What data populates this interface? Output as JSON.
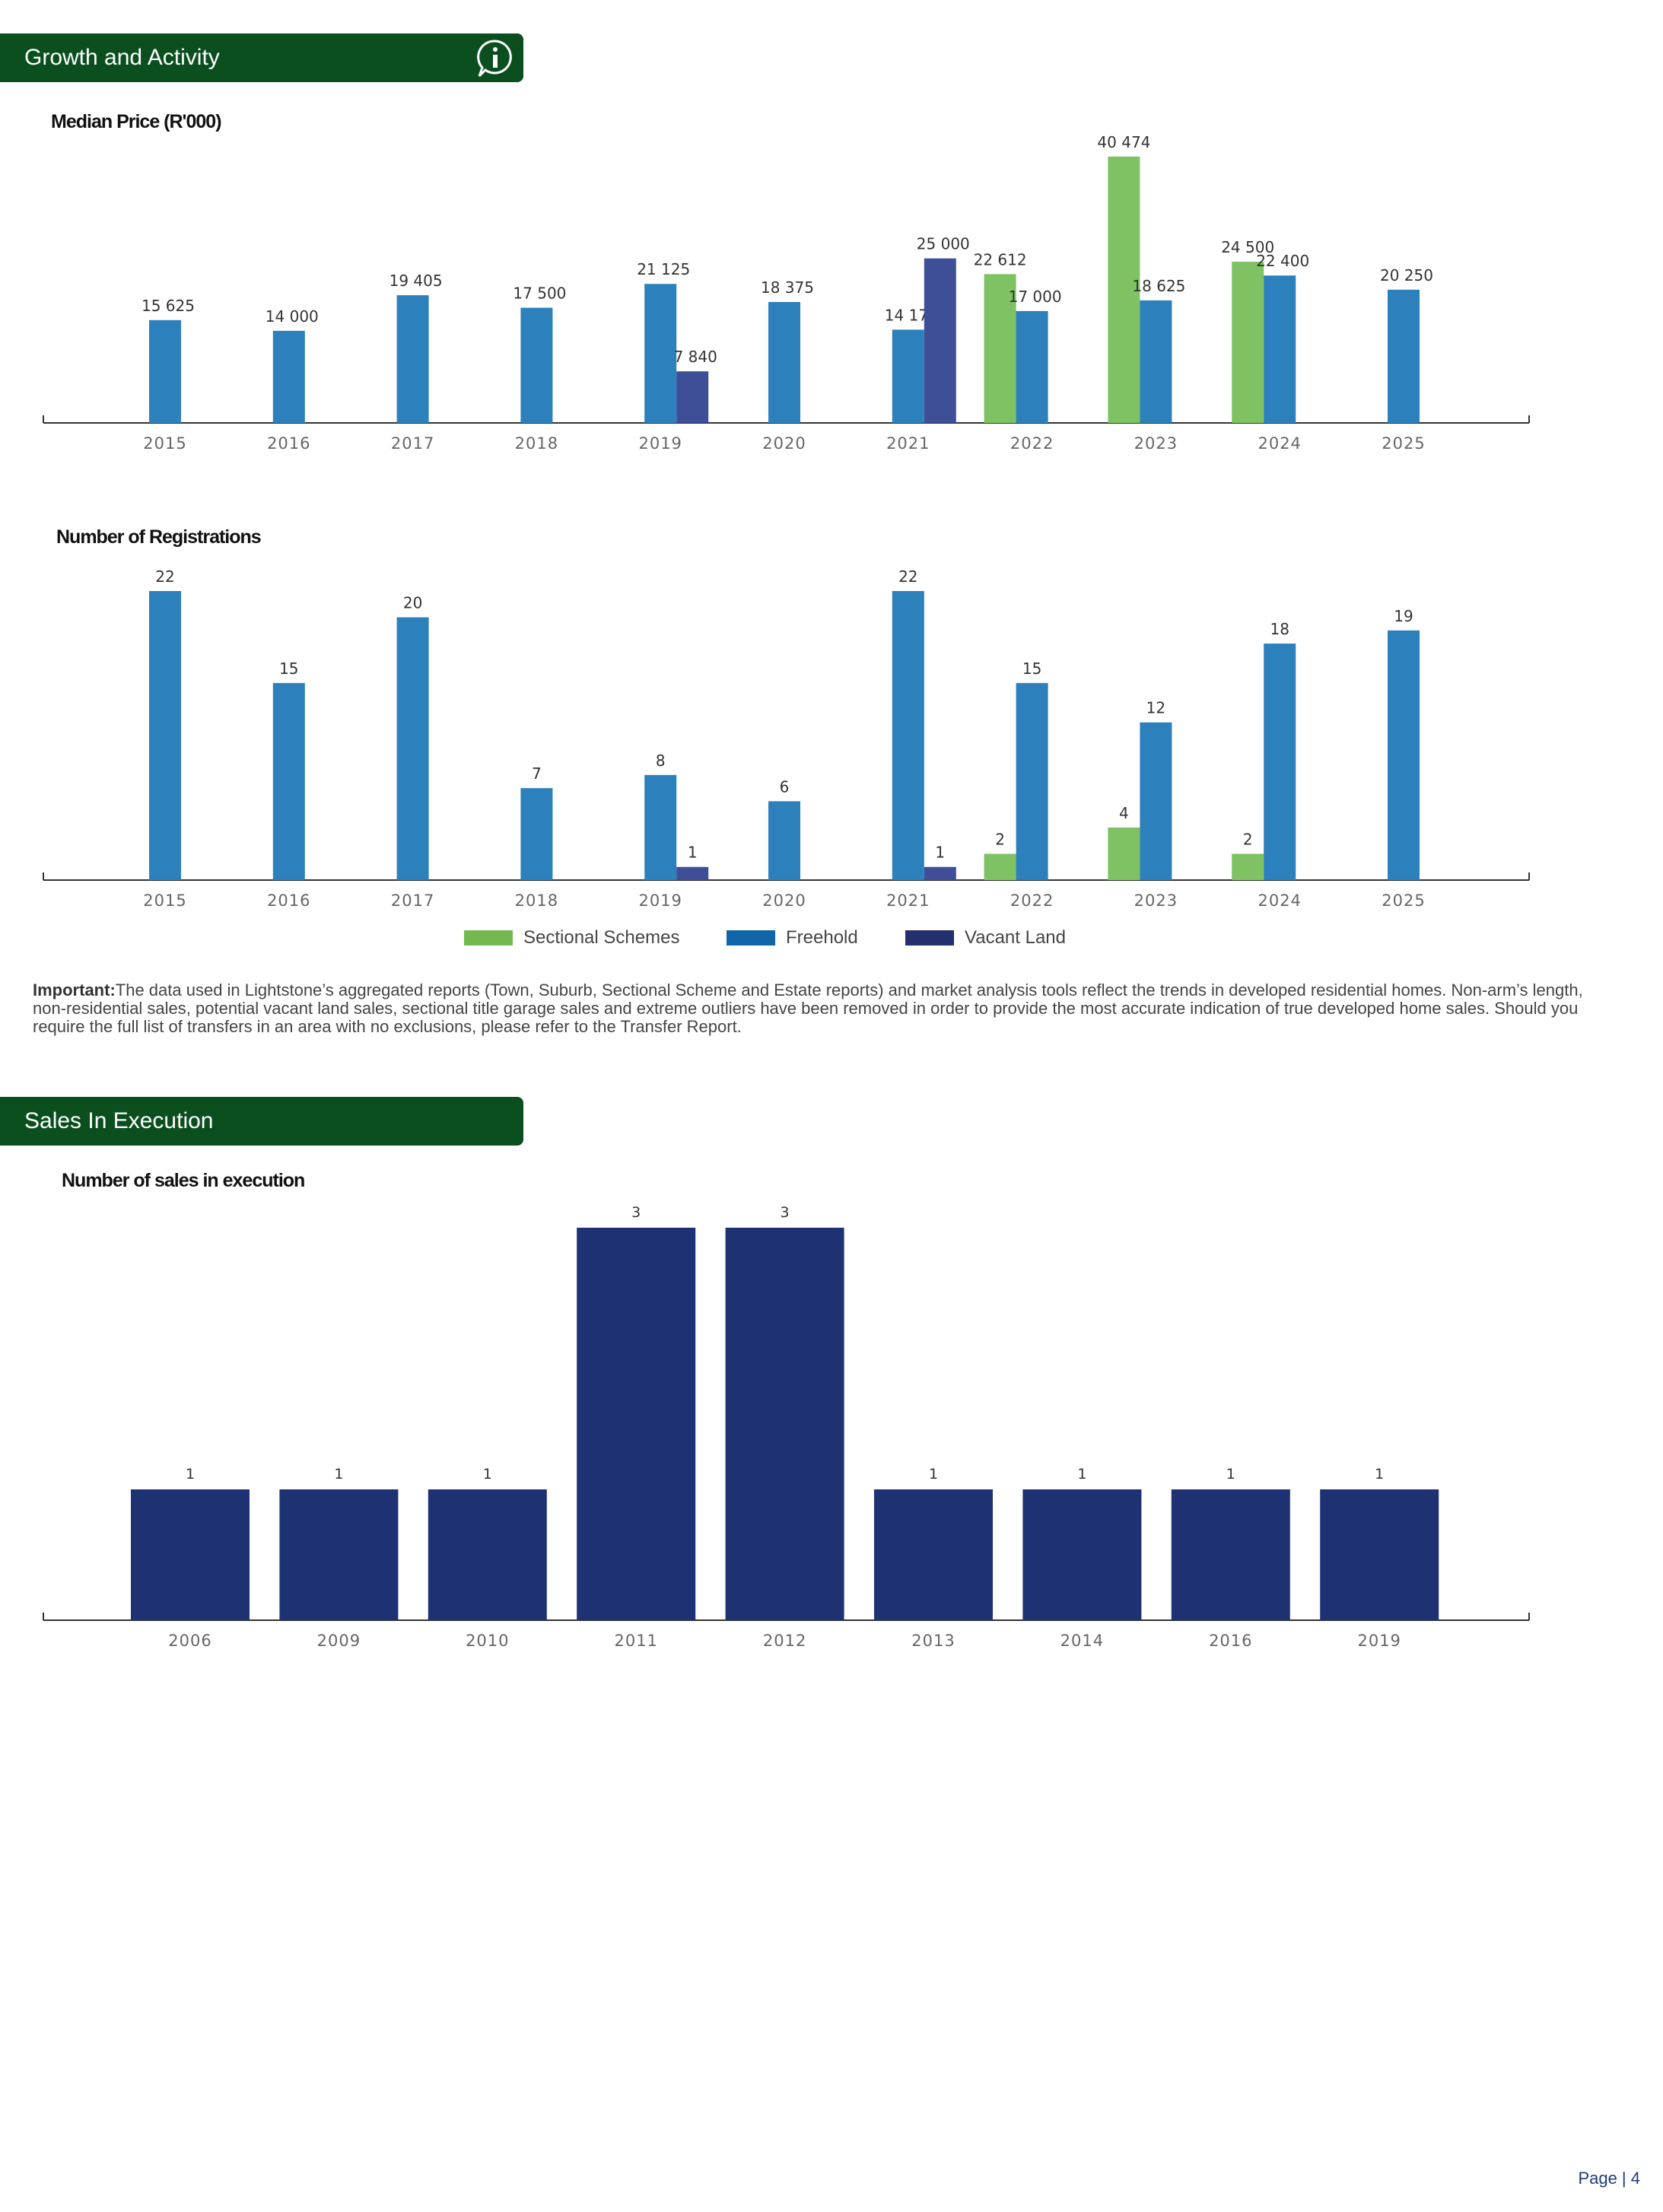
{
  "sections": {
    "growth_title": "Growth and Activity",
    "sales_title": "Sales In Execution"
  },
  "icons": {
    "info": "info-chat-icon"
  },
  "colors": {
    "header_green": "#0b4f1f",
    "sectional_schemes": "#7ec263",
    "freehold": "#2c80bc",
    "vacant_land": "#3e4f97",
    "execution_bar": "#1e3273"
  },
  "legend": {
    "items": [
      {
        "label": "Sectional Schemes",
        "color": "#74b94f"
      },
      {
        "label": "Freehold",
        "color": "#1066a9"
      },
      {
        "label": "Vacant Land",
        "color": "#22306e"
      }
    ]
  },
  "important_note": {
    "lead": "Important:",
    "text": "The data used in Lightstone’s aggregated reports (Town, Suburb, Sectional Scheme and Estate reports) and market analysis tools reflect the trends in developed residential homes. Non-arm’s length, non-residential sales, potential vacant land sales, sectional title garage sales and extreme outliers have been removed in order to provide the most accurate indication of true developed home sales. Should you require the full list of transfers in an area with no exclusions, please refer to the Transfer Report."
  },
  "page": {
    "label": "Page | 4"
  },
  "chart_data": [
    {
      "type": "bar",
      "title": "Median Price (R'000)",
      "categories": [
        "2015",
        "2016",
        "2017",
        "2018",
        "2019",
        "2020",
        "2021",
        "2022",
        "2023",
        "2024",
        "2025"
      ],
      "series": [
        {
          "name": "Sectional Schemes",
          "values": [
            null,
            null,
            null,
            null,
            null,
            null,
            null,
            22612,
            40474,
            24500,
            null
          ],
          "labels": [
            "",
            "",
            "",
            "",
            "",
            "",
            "",
            "22 612",
            "40 474",
            "24 500",
            ""
          ]
        },
        {
          "name": "Freehold",
          "values": [
            15625,
            14000,
            19405,
            17500,
            21125,
            18375,
            14175,
            17000,
            18625,
            22400,
            20250
          ],
          "labels": [
            "15 625",
            "14 000",
            "19 405",
            "17 500",
            "21 125",
            "18 375",
            "14 175",
            "17 000",
            "18 625",
            "22 400",
            "20 250"
          ]
        },
        {
          "name": "Vacant Land",
          "values": [
            null,
            null,
            null,
            null,
            7840,
            null,
            25000,
            null,
            null,
            null,
            null
          ],
          "labels": [
            "",
            "",
            "",
            "",
            "7 840",
            "",
            "25 000",
            "",
            "",
            "",
            ""
          ]
        }
      ],
      "ylim": [
        0,
        43000
      ]
    },
    {
      "type": "bar",
      "title": "Number of Registrations",
      "categories": [
        "2015",
        "2016",
        "2017",
        "2018",
        "2019",
        "2020",
        "2021",
        "2022",
        "2023",
        "2024",
        "2025"
      ],
      "series": [
        {
          "name": "Sectional Schemes",
          "values": [
            null,
            null,
            null,
            null,
            null,
            null,
            null,
            2,
            4,
            2,
            null
          ],
          "labels": [
            "",
            "",
            "",
            "",
            "",
            "",
            "",
            "2",
            "4",
            "2",
            ""
          ]
        },
        {
          "name": "Freehold",
          "values": [
            22,
            15,
            20,
            7,
            8,
            6,
            22,
            15,
            12,
            18,
            19
          ],
          "labels": [
            "22",
            "15",
            "20",
            "7",
            "8",
            "6",
            "22",
            "15",
            "12",
            "18",
            "19"
          ]
        },
        {
          "name": "Vacant Land",
          "values": [
            null,
            null,
            null,
            null,
            1,
            null,
            1,
            null,
            null,
            null,
            null
          ],
          "labels": [
            "",
            "",
            "",
            "",
            "1",
            "",
            "1",
            "",
            "",
            "",
            ""
          ]
        }
      ],
      "ylim": [
        0,
        22
      ]
    },
    {
      "type": "bar",
      "title": "Number of sales in execution",
      "categories": [
        "2006",
        "2009",
        "2010",
        "2011",
        "2012",
        "2013",
        "2014",
        "2016",
        "2019"
      ],
      "values": [
        1,
        1,
        1,
        3,
        3,
        1,
        1,
        1,
        1
      ],
      "labels": [
        "1",
        "1",
        "1",
        "3",
        "3",
        "1",
        "1",
        "1",
        "1"
      ],
      "ylim": [
        0,
        3
      ]
    }
  ]
}
